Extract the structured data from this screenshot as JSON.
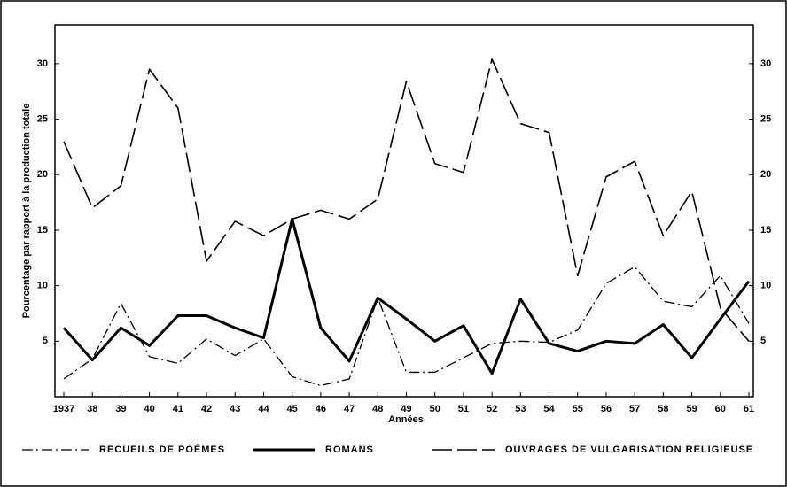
{
  "chart_data": {
    "type": "line",
    "ylabel": "Pourcentage par rapport à la production totale",
    "xlabel": "Années",
    "categories": [
      "1937",
      "38",
      "39",
      "40",
      "41",
      "42",
      "43",
      "44",
      "45",
      "46",
      "47",
      "48",
      "49",
      "50",
      "51",
      "52",
      "53",
      "54",
      "55",
      "56",
      "57",
      "58",
      "59",
      "60",
      "61"
    ],
    "series": [
      {
        "name": "RECUEILS DE POÈMES",
        "color": "#000000",
        "line_style": "dashdot",
        "values": [
          1.6,
          3.4,
          8.4,
          3.6,
          3.0,
          5.2,
          3.7,
          5.2,
          1.8,
          1.0,
          1.6,
          8.9,
          2.2,
          2.2,
          3.5,
          4.8,
          5.0,
          4.9,
          6.0,
          10.2,
          11.7,
          8.6,
          8.1,
          10.9,
          6.6
        ]
      },
      {
        "name": "ROMANS",
        "color": "#000000",
        "line_style": "solid",
        "values": [
          6.2,
          3.3,
          6.2,
          4.6,
          7.3,
          7.3,
          6.2,
          5.3,
          16.0,
          6.2,
          3.2,
          8.9,
          7.0,
          5.0,
          6.4,
          2.1,
          8.8,
          4.8,
          4.1,
          5.0,
          4.8,
          6.5,
          3.5,
          7.0,
          10.4
        ]
      },
      {
        "name": "OUVRAGES DE VULGARISATION RELIGIEUSE",
        "color": "#000000",
        "line_style": "dashed",
        "values": [
          23.0,
          17.0,
          19.0,
          29.5,
          26.0,
          12.2,
          15.8,
          14.5,
          16.0,
          16.8,
          16.0,
          17.8,
          28.4,
          21.0,
          20.2,
          30.4,
          24.6,
          23.8,
          10.9,
          19.8,
          21.2,
          14.5,
          18.5,
          8.0,
          5.0
        ]
      }
    ],
    "ylim": [
      0,
      33.5
    ],
    "yticks": [
      5,
      10,
      15,
      20,
      25,
      30
    ],
    "y2lim": [
      0,
      33.5
    ],
    "y2ticks": [
      5,
      10,
      15,
      20,
      25,
      30
    ],
    "legend": "bottom"
  }
}
